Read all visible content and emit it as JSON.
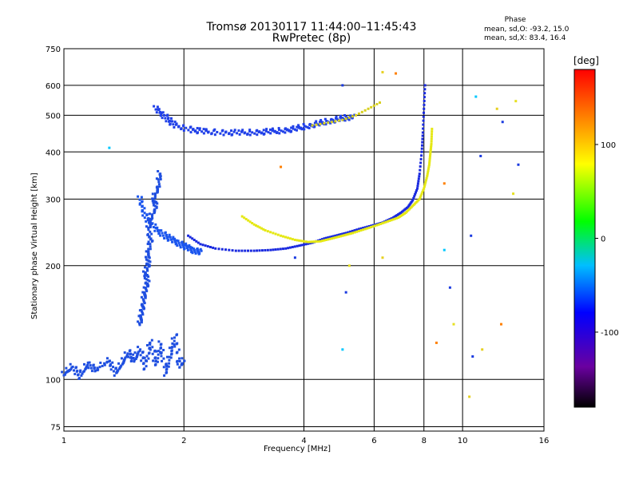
{
  "chart_data": {
    "type": "scatter",
    "title": "Tromsø 20130117 11:44:00–11:45:43",
    "subtitle": "RwPretec (8p)",
    "xlabel": "Frequency [MHz]",
    "ylabel": "Stationary phase Virtual Height [km]",
    "x_scale": "log",
    "y_scale": "log",
    "xlim": [
      1,
      16
    ],
    "ylim": [
      73,
      750
    ],
    "x_ticks": [
      1,
      2,
      4,
      6,
      8,
      10,
      16
    ],
    "y_ticks": [
      75,
      100,
      200,
      300,
      400,
      500,
      600,
      750
    ],
    "grid": true,
    "colorbar": {
      "label": "[deg]",
      "range": [
        -180,
        180
      ],
      "ticks": [
        100,
        0,
        -100
      ],
      "colors": [
        "#000000",
        "#7a00a8",
        "#0000ff",
        "#00bfff",
        "#00ff00",
        "#ffff00",
        "#ff8000",
        "#ff0000"
      ]
    },
    "stats": {
      "title": "Phase",
      "o_line": "mean, sd,O: -93.2, 15.0",
      "x_line": "mean, sd,X: 83.4, 16.4"
    },
    "o_trace_F": [
      [
        2.05,
        240
      ],
      [
        2.2,
        228
      ],
      [
        2.4,
        222
      ],
      [
        2.7,
        219
      ],
      [
        3.0,
        219
      ],
      [
        3.3,
        220
      ],
      [
        3.6,
        222
      ],
      [
        3.9,
        226
      ],
      [
        4.2,
        230
      ],
      [
        4.5,
        236
      ],
      [
        4.8,
        240
      ],
      [
        5.1,
        244
      ],
      [
        5.5,
        250
      ],
      [
        5.9,
        255
      ],
      [
        6.3,
        260
      ],
      [
        6.7,
        268
      ],
      [
        7.0,
        276
      ],
      [
        7.3,
        286
      ],
      [
        7.5,
        298
      ],
      [
        7.7,
        320
      ],
      [
        7.8,
        350
      ],
      [
        7.9,
        400
      ],
      [
        7.95,
        450
      ],
      [
        8.0,
        520
      ],
      [
        8.05,
        600
      ]
    ],
    "o_trace_F_low": [
      [
        1.55,
        300
      ],
      [
        1.6,
        270
      ],
      [
        1.7,
        250
      ],
      [
        1.8,
        240
      ],
      [
        1.9,
        232
      ],
      [
        2.0,
        226
      ],
      [
        2.1,
        220
      ],
      [
        2.2,
        218
      ]
    ],
    "x_trace_F": [
      [
        2.8,
        270
      ],
      [
        3.0,
        257
      ],
      [
        3.2,
        248
      ],
      [
        3.5,
        240
      ],
      [
        3.8,
        234
      ],
      [
        4.1,
        231
      ],
      [
        4.4,
        232
      ],
      [
        4.7,
        236
      ],
      [
        5.0,
        240
      ],
      [
        5.3,
        244
      ],
      [
        5.7,
        250
      ],
      [
        6.1,
        256
      ],
      [
        6.5,
        262
      ],
      [
        6.9,
        268
      ],
      [
        7.2,
        276
      ],
      [
        7.5,
        288
      ],
      [
        7.8,
        300
      ],
      [
        8.0,
        320
      ],
      [
        8.15,
        345
      ],
      [
        8.25,
        370
      ],
      [
        8.3,
        395
      ],
      [
        8.35,
        420
      ],
      [
        8.38,
        460
      ]
    ],
    "o_trace_F_high": [
      [
        1.7,
        520
      ],
      [
        1.8,
        495
      ],
      [
        1.9,
        470
      ],
      [
        2.1,
        458
      ],
      [
        2.3,
        452
      ],
      [
        2.6,
        450
      ],
      [
        2.9,
        450
      ],
      [
        3.2,
        452
      ],
      [
        3.5,
        455
      ],
      [
        3.8,
        460
      ],
      [
        4.1,
        468
      ],
      [
        4.4,
        476
      ],
      [
        4.7,
        484
      ],
      [
        5.0,
        490
      ],
      [
        5.3,
        495
      ]
    ],
    "x_trace_F_high": [
      [
        4.2,
        470
      ],
      [
        4.6,
        478
      ],
      [
        5.0,
        486
      ],
      [
        5.4,
        500
      ],
      [
        5.8,
        520
      ],
      [
        6.2,
        540
      ]
    ],
    "e_layer_noise": [
      [
        1.0,
        103
      ],
      [
        1.05,
        108
      ],
      [
        1.1,
        102
      ],
      [
        1.15,
        110
      ],
      [
        1.2,
        106
      ],
      [
        1.3,
        112
      ],
      [
        1.35,
        104
      ],
      [
        1.4,
        110
      ],
      [
        1.45,
        118
      ],
      [
        1.5,
        112
      ],
      [
        1.55,
        120
      ],
      [
        1.6,
        108
      ],
      [
        1.65,
        126
      ],
      [
        1.7,
        110
      ],
      [
        1.75,
        124
      ],
      [
        1.8,
        104
      ],
      [
        1.85,
        116
      ],
      [
        1.9,
        130
      ],
      [
        1.95,
        108
      ],
      [
        2.0,
        112
      ]
    ],
    "spread_column": [
      [
        1.55,
        140
      ],
      [
        1.57,
        150
      ],
      [
        1.58,
        160
      ],
      [
        1.6,
        170
      ],
      [
        1.62,
        180
      ],
      [
        1.6,
        190
      ],
      [
        1.63,
        200
      ],
      [
        1.62,
        210
      ],
      [
        1.65,
        230
      ],
      [
        1.63,
        250
      ],
      [
        1.66,
        270
      ],
      [
        1.7,
        285
      ],
      [
        1.68,
        300
      ],
      [
        1.72,
        320
      ],
      [
        1.74,
        350
      ]
    ],
    "scattered_points": [
      [
        5.0,
        600
      ],
      [
        6.3,
        650
      ],
      [
        6.8,
        645
      ],
      [
        10.8,
        560
      ],
      [
        12.6,
        480
      ],
      [
        13.6,
        545
      ],
      [
        11.1,
        390
      ],
      [
        12.2,
        520
      ],
      [
        9.0,
        330
      ],
      [
        9.0,
        220
      ],
      [
        9.3,
        175
      ],
      [
        9.5,
        140
      ],
      [
        10.6,
        115
      ],
      [
        10.4,
        90
      ],
      [
        8.6,
        125
      ],
      [
        5.0,
        120
      ],
      [
        5.1,
        170
      ],
      [
        5.2,
        200
      ],
      [
        3.8,
        210
      ],
      [
        6.3,
        210
      ],
      [
        3.5,
        365
      ],
      [
        1.3,
        410
      ],
      [
        13.8,
        370
      ],
      [
        13.4,
        310
      ],
      [
        10.5,
        240
      ],
      [
        11.2,
        120
      ],
      [
        12.5,
        140
      ]
    ]
  }
}
